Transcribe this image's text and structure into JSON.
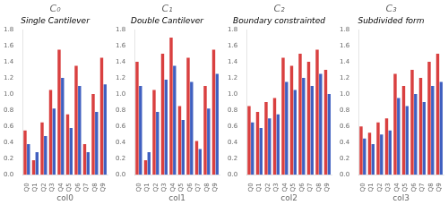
{
  "chart_data": [
    {
      "type": "bar",
      "title": "C₀",
      "subtitle": "Single Cantilever",
      "xlabel": "col0",
      "categories": [
        "Q0",
        "Q1",
        "Q2",
        "Q3",
        "Q4",
        "Q5",
        "Q6",
        "Q7",
        "Q8",
        "Q9"
      ],
      "series": [
        {
          "color": "#d94040",
          "values": [
            0.55,
            0.18,
            0.65,
            1.05,
            1.55,
            0.75,
            1.35,
            0.38,
            1.0,
            1.45
          ]
        },
        {
          "color": "#4060c0",
          "values": [
            0.38,
            0.28,
            0.48,
            0.82,
            1.2,
            0.58,
            1.1,
            0.28,
            0.78,
            1.12
          ]
        }
      ],
      "ylim": [
        0.0,
        1.8
      ],
      "yticks": [
        {
          "value": 0.0,
          "label": "0.0"
        },
        0.2,
        0.4,
        0.6,
        0.8,
        {
          "value": 1.0,
          "label": "1.0"
        },
        1.2,
        1.4,
        1.6,
        1.8
      ],
      "grid": false
    },
    {
      "type": "bar",
      "title": "C₁",
      "subtitle": "Double Cantilever",
      "xlabel": "col1",
      "categories": [
        "Q0",
        "Q1",
        "Q2",
        "Q3",
        "Q4",
        "Q5",
        "Q6",
        "Q7",
        "Q8",
        "Q9"
      ],
      "series": [
        {
          "color": "#d94040",
          "values": [
            1.4,
            0.18,
            1.05,
            1.5,
            1.7,
            0.85,
            1.45,
            0.42,
            1.1,
            1.55
          ]
        },
        {
          "color": "#4060c0",
          "values": [
            1.1,
            0.28,
            0.78,
            1.18,
            1.35,
            0.68,
            1.15,
            0.32,
            0.82,
            1.25
          ]
        }
      ],
      "ylim": [
        0.0,
        1.8
      ],
      "yticks": [
        {
          "value": 0.0,
          "label": "0.0"
        },
        0.2,
        0.4,
        0.6,
        0.8,
        {
          "value": 1.0,
          "label": "1.0"
        },
        1.2,
        1.4,
        1.6,
        1.8
      ],
      "grid": false
    },
    {
      "type": "bar",
      "title": "C₂",
      "subtitle": "Boundary constrainted",
      "xlabel": "col2",
      "categories": [
        "Q0",
        "Q1",
        "Q2",
        "Q3",
        "Q4",
        "Q5",
        "Q6",
        "Q7",
        "Q8",
        "Q9"
      ],
      "series": [
        {
          "color": "#d94040",
          "values": [
            0.85,
            0.78,
            0.9,
            0.95,
            1.45,
            1.35,
            1.5,
            1.4,
            1.55,
            1.3
          ]
        },
        {
          "color": "#4060c0",
          "values": [
            0.65,
            0.58,
            0.7,
            0.75,
            1.15,
            1.05,
            1.2,
            1.1,
            1.25,
            1.0
          ]
        }
      ],
      "ylim": [
        0.0,
        1.8
      ],
      "yticks": [
        {
          "value": 0.0,
          "label": "0.0"
        },
        0.2,
        0.4,
        0.6,
        0.8,
        {
          "value": 1.0,
          "label": "1.0"
        },
        1.2,
        1.4,
        1.6,
        1.8
      ],
      "grid": false
    },
    {
      "type": "bar",
      "title": "C₃",
      "subtitle": "Subdivided form",
      "xlabel": "col3",
      "categories": [
        "Q0",
        "Q1",
        "Q2",
        "Q3",
        "Q4",
        "Q5",
        "Q6",
        "Q7",
        "Q8",
        "Q9"
      ],
      "series": [
        {
          "color": "#d94040",
          "values": [
            0.6,
            0.52,
            0.65,
            0.7,
            1.25,
            1.1,
            1.3,
            1.2,
            1.4,
            1.5
          ]
        },
        {
          "color": "#4060c0",
          "values": [
            0.45,
            0.38,
            0.5,
            0.55,
            0.95,
            0.85,
            1.0,
            0.9,
            1.1,
            1.15
          ]
        }
      ],
      "ylim": [
        0.0,
        1.8
      ],
      "yticks": [
        {
          "value": 0.0,
          "label": "0.0"
        },
        0.2,
        0.4,
        0.6,
        0.8,
        {
          "value": 1.0,
          "label": "1.0"
        },
        1.2,
        1.4,
        1.6,
        1.8
      ],
      "grid": false
    }
  ]
}
